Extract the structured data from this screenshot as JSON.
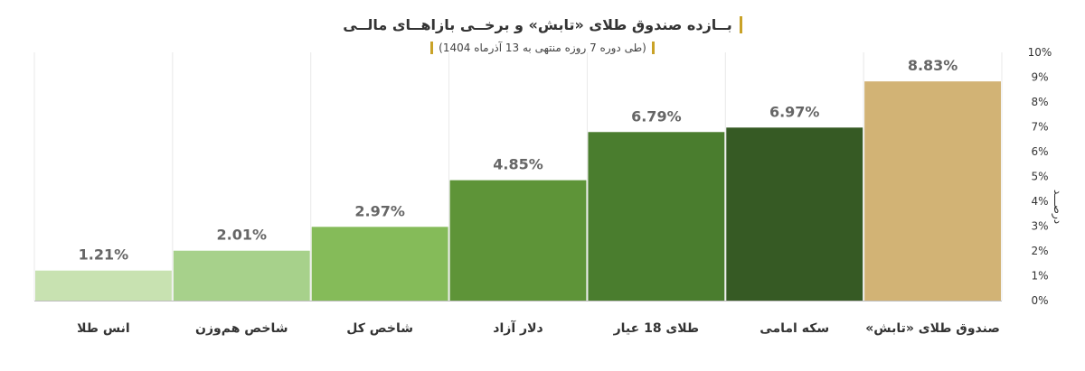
{
  "chart_data": {
    "type": "bar",
    "title": "بــازده صندوق طلای «تابش» و برخــی بازاهــای مالــی",
    "subtitle": "(طی دوره 7 روزه منتهی به 13 آذرماه 1404)",
    "ylabel": "درصـــد",
    "xlabel": "",
    "ylim": [
      0,
      10
    ],
    "yticks": [
      "0%",
      "1%",
      "2%",
      "3%",
      "4%",
      "5%",
      "6%",
      "7%",
      "8%",
      "9%",
      "10%"
    ],
    "categories": [
      "انس طلا",
      "شاخص هم‌وزن",
      "شاخص کل",
      "دلار آزاد",
      "طلای 18 عیار",
      "سکه امامی",
      "صندوق طلای «تابش»"
    ],
    "values": [
      1.21,
      2.01,
      2.97,
      4.85,
      6.79,
      6.97,
      8.83
    ],
    "value_labels": [
      "1.21%",
      "2.01%",
      "2.97%",
      "4.85%",
      "6.79%",
      "6.97%",
      "8.83%"
    ],
    "colors": [
      "#c8e2b1",
      "#a7d18b",
      "#85bb59",
      "#5e9438",
      "#4a7d2e",
      "#365a24",
      "#d2b375"
    ],
    "grid": "vertical separators"
  }
}
